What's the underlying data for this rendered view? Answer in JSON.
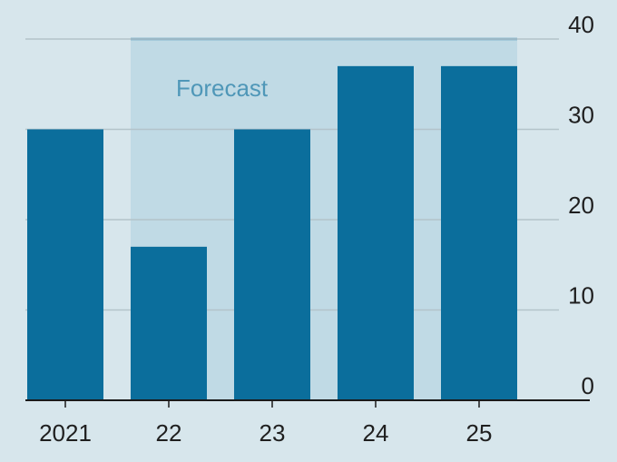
{
  "chart_data": {
    "type": "bar",
    "categories": [
      "2021",
      "22",
      "23",
      "24",
      "25"
    ],
    "values": [
      30,
      17,
      30,
      37,
      37
    ],
    "ylim": [
      0,
      40
    ],
    "yticks": [
      0,
      10,
      20,
      30,
      40
    ],
    "yaxis_position": "right",
    "grid": true,
    "forecast_region": {
      "label": "Forecast",
      "from_category": "22",
      "to_category": "25"
    },
    "colors": {
      "background": "#d7e6ec",
      "bar": "#0b6e9c",
      "forecast_shade": "#c0dae5",
      "forecast_text": "#4f97b8",
      "grid": "#b3c3ca",
      "baseline": "#1a1a1a"
    }
  }
}
